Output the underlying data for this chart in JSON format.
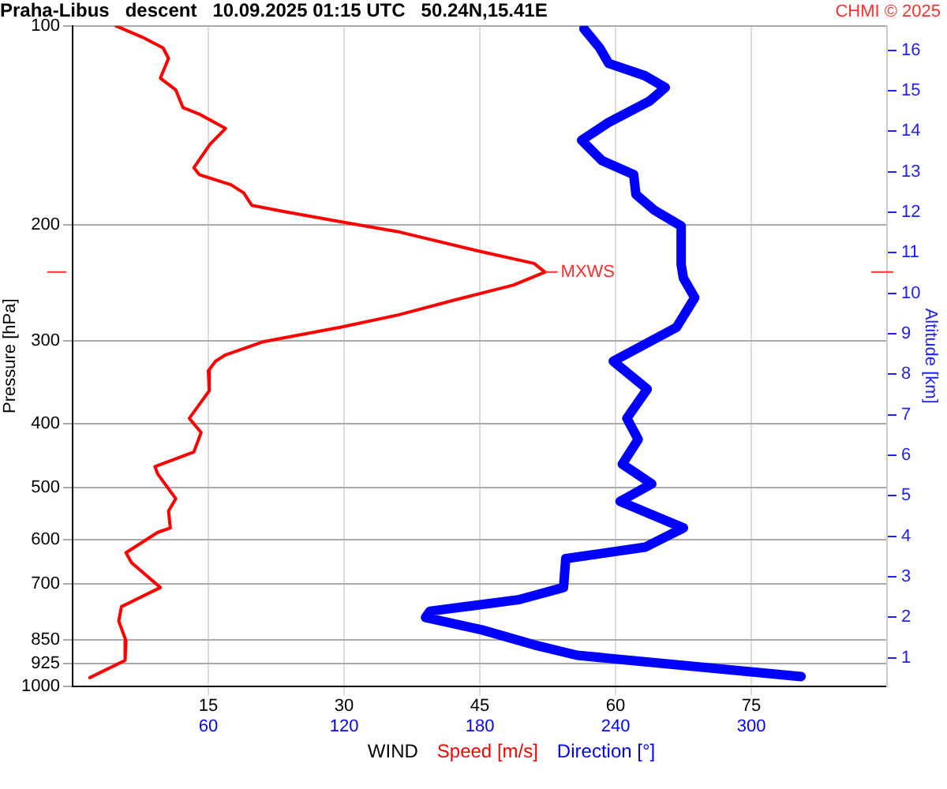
{
  "chart_data": {
    "type": "line",
    "orientation": "horizontal",
    "title": "Praha-Libus   descent   10.09.2025 01:15 UTC   50.24N,15.41E",
    "xlabel": "WIND",
    "ylabel": "Pressure [hPa]",
    "y2label": "Altitude [km]",
    "annotations": [
      {
        "text": "MXWS",
        "x": 52.2,
        "y": 236
      },
      "CHMI © 2025"
    ],
    "xlim": [
      0,
      90
    ],
    "xticks": [
      15,
      30,
      45,
      60,
      75
    ],
    "x2lim": [
      0,
      360
    ],
    "x2ticks": [
      60,
      120,
      180,
      240,
      300
    ],
    "ylim": [
      1000,
      100
    ],
    "yticks": [
      100,
      200,
      300,
      400,
      500,
      600,
      700,
      850,
      925,
      1000
    ],
    "log": "y",
    "y2lim": [
      0.3,
      16.6
    ],
    "y2ticks": [
      1,
      2,
      3,
      4,
      5,
      6,
      7,
      8,
      9,
      10,
      11,
      12,
      13,
      14,
      15,
      16
    ],
    "grid": true,
    "legend": "bottom",
    "series": [
      {
        "name": "Speed [m/s]",
        "color": "#ff0000",
        "x": [
          100,
          104,
          108,
          112,
          120,
          125,
          133,
          136,
          143,
          151,
          164,
          168,
          174,
          179,
          187,
          191,
          198,
          205,
          219,
          229,
          236,
          247,
          260,
          274,
          286,
          301,
          315,
          322,
          333,
          357,
          393,
          413,
          442,
          465,
          477,
          520,
          543,
          576,
          585,
          628,
          650,
          709,
          758,
          797,
          854,
          914,
          971
        ],
        "values": [
          4.8,
          7.7,
          10.0,
          10.6,
          9.7,
          11.4,
          12.2,
          14.0,
          16.9,
          15.2,
          13.4,
          14.0,
          17.5,
          18.9,
          19.8,
          23.3,
          29.6,
          36.0,
          44.7,
          51.0,
          52.2,
          48.7,
          42.3,
          36.0,
          29.6,
          21.0,
          16.9,
          15.8,
          15.0,
          15.1,
          12.9,
          14.2,
          13.4,
          9.1,
          9.4,
          11.4,
          10.6,
          10.8,
          9.4,
          5.9,
          6.5,
          9.7,
          5.4,
          5.1,
          5.9,
          5.8,
          1.9
        ]
      },
      {
        "name": "Direction [°]",
        "color": "#0000ff",
        "axis": "x2",
        "x": [
          101,
          108,
          114,
          119,
          124,
          130,
          140,
          149,
          160,
          168,
          180,
          190,
          201,
          230,
          241,
          258,
          286,
          301,
          322,
          355,
          393,
          423,
          461,
          494,
          525,
          576,
          616,
          641,
          709,
          740,
          756,
          770,
          787,
          822,
          866,
          898,
          967
        ],
        "values": [
          226,
          233,
          237,
          253,
          262,
          255,
          237,
          225,
          234,
          248,
          249,
          257,
          269,
          269,
          270,
          275,
          267,
          255,
          239,
          254,
          245,
          250,
          243,
          256,
          242,
          270,
          253,
          218,
          217,
          197,
          176,
          158,
          156,
          181,
          204,
          223,
          322
        ]
      }
    ]
  }
}
